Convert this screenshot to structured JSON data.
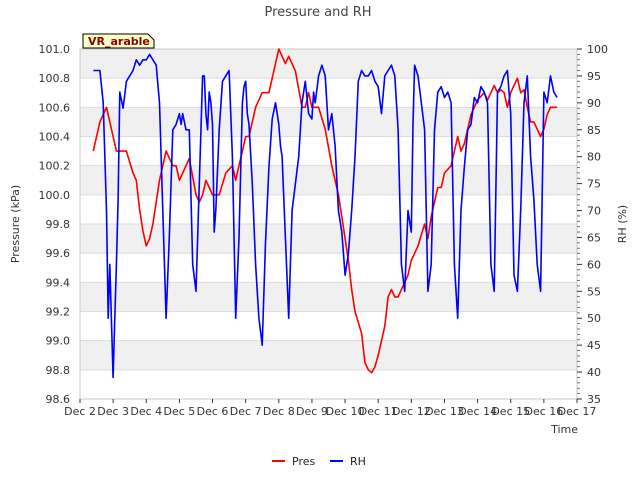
{
  "chart_data": {
    "type": "line",
    "title": "Pressure and RH",
    "xlabel": "Time",
    "ylabel": "Pressure (kPa)",
    "y2label": "RH (%)",
    "site_label": "VR_arable",
    "x_tick_labels": [
      "Dec 2",
      "Dec 3",
      "Dec 4",
      "Dec 5",
      "Dec 6",
      "Dec 7",
      "Dec 8",
      "Dec 9",
      "Dec 10",
      "Dec 11",
      "Dec 12",
      "Dec 13",
      "Dec 14",
      "Dec 15",
      "Dec 16",
      "Dec 17"
    ],
    "xlim": [
      2,
      17
    ],
    "ylim": [
      98.6,
      101.0
    ],
    "y_ticks": [
      98.6,
      98.8,
      99.0,
      99.2,
      99.4,
      99.6,
      99.8,
      100.0,
      100.2,
      100.4,
      100.6,
      100.8,
      101.0
    ],
    "y_tick_labels": [
      "98.6",
      "98.8",
      "99.0",
      "99.2",
      "99.4",
      "99.6",
      "99.8",
      "100.0",
      "100.2",
      "100.4",
      "100.6",
      "100.8",
      "101.0"
    ],
    "y2lim": [
      35,
      100
    ],
    "y2_ticks": [
      35,
      40,
      45,
      50,
      55,
      60,
      65,
      70,
      75,
      80,
      85,
      90,
      95,
      100
    ],
    "y2_tick_labels": [
      "35",
      "40",
      "45",
      "50",
      "55",
      "60",
      "65",
      "70",
      "75",
      "80",
      "85",
      "90",
      "95",
      "100"
    ],
    "grid": true,
    "legend": "bottom-center",
    "series": [
      {
        "name": "Pres",
        "axis": "left",
        "color": "#ff0000",
        "x": [
          2.4,
          2.5,
          2.6,
          2.7,
          2.8,
          2.9,
          3.0,
          3.1,
          3.2,
          3.4,
          3.6,
          3.7,
          3.8,
          3.9,
          4.0,
          4.1,
          4.2,
          4.3,
          4.4,
          4.6,
          4.8,
          4.9,
          5.0,
          5.1,
          5.3,
          5.5,
          5.6,
          5.7,
          5.8,
          5.9,
          6.0,
          6.2,
          6.4,
          6.6,
          6.7,
          6.8,
          6.9,
          7.0,
          7.1,
          7.3,
          7.5,
          7.6,
          7.7,
          7.8,
          8.0,
          8.2,
          8.3,
          8.5,
          8.7,
          8.8,
          8.9,
          9.0,
          9.2,
          9.4,
          9.6,
          9.8,
          9.9,
          10.0,
          10.1,
          10.2,
          10.3,
          10.5,
          10.6,
          10.7,
          10.8,
          10.9,
          11.0,
          11.1,
          11.2,
          11.3,
          11.4,
          11.5,
          11.6,
          11.7,
          11.8,
          11.9,
          12.0,
          12.2,
          12.4,
          12.5,
          12.6,
          12.7,
          12.8,
          12.9,
          13.0,
          13.2,
          13.3,
          13.4,
          13.5,
          13.6,
          13.7,
          13.8,
          14.0,
          14.2,
          14.3,
          14.4,
          14.5,
          14.6,
          14.7,
          14.8,
          14.9,
          15.0,
          15.1,
          15.2,
          15.3,
          15.4,
          15.5,
          15.6,
          15.7,
          15.8,
          15.9,
          16.0,
          16.1,
          16.2,
          16.3,
          16.4
        ],
        "values": [
          100.3,
          100.4,
          100.5,
          100.55,
          100.6,
          100.5,
          100.4,
          100.3,
          100.3,
          100.3,
          100.15,
          100.1,
          99.9,
          99.75,
          99.65,
          99.7,
          99.8,
          99.95,
          100.1,
          100.3,
          100.2,
          100.2,
          100.1,
          100.15,
          100.25,
          100.0,
          99.95,
          100.0,
          100.1,
          100.05,
          100.0,
          100.0,
          100.15,
          100.2,
          100.1,
          100.2,
          100.3,
          100.4,
          100.4,
          100.6,
          100.7,
          100.7,
          100.7,
          100.8,
          101.0,
          100.9,
          100.95,
          100.85,
          100.6,
          100.6,
          100.7,
          100.6,
          100.6,
          100.45,
          100.2,
          100.0,
          99.85,
          99.7,
          99.55,
          99.35,
          99.2,
          99.05,
          98.85,
          98.8,
          98.78,
          98.82,
          98.9,
          99.0,
          99.1,
          99.3,
          99.35,
          99.3,
          99.3,
          99.35,
          99.4,
          99.45,
          99.55,
          99.65,
          99.8,
          99.7,
          99.85,
          99.95,
          100.05,
          100.05,
          100.15,
          100.2,
          100.3,
          100.4,
          100.3,
          100.35,
          100.45,
          100.55,
          100.65,
          100.7,
          100.65,
          100.7,
          100.75,
          100.7,
          100.72,
          100.7,
          100.6,
          100.7,
          100.75,
          100.8,
          100.7,
          100.72,
          100.6,
          100.5,
          100.5,
          100.45,
          100.4,
          100.45,
          100.55,
          100.6,
          100.6,
          100.6
        ]
      },
      {
        "name": "RH",
        "axis": "right",
        "color": "#0000ff",
        "x": [
          2.4,
          2.5,
          2.6,
          2.7,
          2.8,
          2.85,
          2.9,
          3.0,
          3.05,
          3.1,
          3.15,
          3.2,
          3.3,
          3.4,
          3.5,
          3.6,
          3.7,
          3.8,
          3.9,
          4.0,
          4.1,
          4.2,
          4.3,
          4.4,
          4.5,
          4.6,
          4.7,
          4.8,
          4.9,
          5.0,
          5.05,
          5.1,
          5.2,
          5.3,
          5.4,
          5.5,
          5.6,
          5.7,
          5.75,
          5.8,
          5.85,
          5.9,
          5.95,
          6.0,
          6.05,
          6.1,
          6.2,
          6.3,
          6.4,
          6.5,
          6.6,
          6.7,
          6.8,
          6.9,
          6.95,
          7.0,
          7.05,
          7.1,
          7.2,
          7.3,
          7.4,
          7.5,
          7.6,
          7.7,
          7.8,
          7.9,
          8.0,
          8.05,
          8.1,
          8.2,
          8.3,
          8.4,
          8.5,
          8.6,
          8.7,
          8.8,
          8.9,
          9.0,
          9.05,
          9.1,
          9.2,
          9.3,
          9.4,
          9.5,
          9.6,
          9.7,
          9.8,
          9.9,
          10.0,
          10.1,
          10.2,
          10.3,
          10.4,
          10.5,
          10.6,
          10.7,
          10.8,
          10.9,
          11.0,
          11.1,
          11.2,
          11.3,
          11.4,
          11.5,
          11.6,
          11.7,
          11.8,
          11.9,
          12.0,
          12.05,
          12.1,
          12.2,
          12.3,
          12.4,
          12.5,
          12.6,
          12.7,
          12.8,
          12.9,
          13.0,
          13.1,
          13.2,
          13.3,
          13.4,
          13.5,
          13.6,
          13.7,
          13.8,
          13.9,
          14.0,
          14.1,
          14.2,
          14.3,
          14.4,
          14.5,
          14.6,
          14.7,
          14.8,
          14.9,
          15.0,
          15.1,
          15.2,
          15.3,
          15.4,
          15.5,
          15.6,
          15.7,
          15.8,
          15.9,
          16.0,
          16.1,
          16.2,
          16.3,
          16.4
        ],
        "values": [
          96,
          96,
          96,
          90,
          70,
          50,
          60,
          39,
          50,
          60,
          72,
          92,
          89,
          94,
          95,
          96,
          98,
          97,
          98,
          98,
          99,
          98,
          97,
          90,
          70,
          50,
          66,
          85,
          86,
          88,
          86,
          88,
          85,
          85,
          60,
          55,
          75,
          95,
          95,
          88,
          85,
          92,
          90,
          86,
          66,
          70,
          85,
          94,
          95,
          96,
          80,
          50,
          65,
          90,
          93,
          94,
          88,
          86,
          75,
          60,
          50,
          45,
          64,
          78,
          87,
          90,
          86,
          82,
          80,
          65,
          50,
          70,
          75,
          80,
          90,
          94,
          88,
          87,
          92,
          90,
          95,
          97,
          95,
          85,
          88,
          82,
          70,
          66,
          58,
          62,
          70,
          80,
          94,
          96,
          95,
          95,
          96,
          94,
          93,
          88,
          95,
          96,
          97,
          95,
          85,
          60,
          55,
          70,
          66,
          86,
          97,
          95,
          90,
          85,
          55,
          60,
          85,
          92,
          93,
          91,
          92,
          90,
          60,
          50,
          70,
          78,
          85,
          86,
          91,
          90,
          93,
          92,
          90,
          60,
          55,
          92,
          93,
          95,
          96,
          88,
          58,
          55,
          70,
          90,
          95,
          80,
          72,
          60,
          55,
          92,
          90,
          95,
          92,
          91
        ]
      }
    ]
  }
}
